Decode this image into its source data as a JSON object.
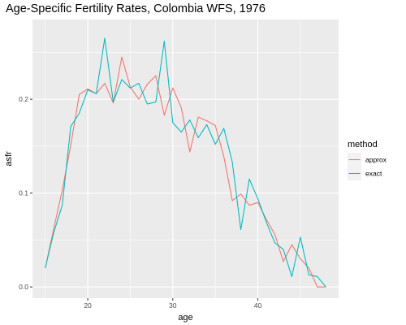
{
  "chart_data": {
    "type": "line",
    "title": "Age-Specific Fertility Rates, Colombia WFS, 1976",
    "xlabel": "age",
    "ylabel": "asfr",
    "xlim": [
      13.5,
      49.5
    ],
    "ylim": [
      -0.012,
      0.285
    ],
    "x_ticks": [
      20,
      30,
      40
    ],
    "y_ticks": [
      0.0,
      0.1,
      0.2
    ],
    "y_tick_labels": [
      "0.0",
      "0.1",
      "0.2"
    ],
    "grid": true,
    "legend": {
      "title": "method",
      "position": "right"
    },
    "x": [
      15,
      16,
      17,
      18,
      19,
      20,
      21,
      22,
      23,
      24,
      25,
      26,
      27,
      28,
      29,
      30,
      31,
      32,
      33,
      34,
      35,
      36,
      37,
      38,
      39,
      40,
      41,
      42,
      43,
      44,
      45,
      46,
      47,
      48
    ],
    "series": [
      {
        "name": "approx",
        "color": "#F8766D",
        "values": [
          0.02,
          0.062,
          0.103,
          0.151,
          0.205,
          0.211,
          0.206,
          0.217,
          0.196,
          0.245,
          0.213,
          0.2,
          0.216,
          0.225,
          0.183,
          0.212,
          0.191,
          0.144,
          0.181,
          0.177,
          0.172,
          0.139,
          0.092,
          0.099,
          0.087,
          0.09,
          0.072,
          0.056,
          0.027,
          0.045,
          0.03,
          0.02,
          0.0,
          0.0
        ]
      },
      {
        "name": "exact",
        "color": "#00BFC4",
        "values": [
          0.02,
          0.058,
          0.087,
          0.171,
          0.185,
          0.21,
          0.206,
          0.265,
          0.197,
          0.221,
          0.212,
          0.217,
          0.195,
          0.197,
          0.262,
          0.175,
          0.165,
          0.178,
          0.159,
          0.173,
          0.152,
          0.169,
          0.133,
          0.061,
          0.115,
          0.094,
          0.069,
          0.047,
          0.04,
          0.011,
          0.053,
          0.013,
          0.011,
          0.0
        ]
      }
    ]
  }
}
